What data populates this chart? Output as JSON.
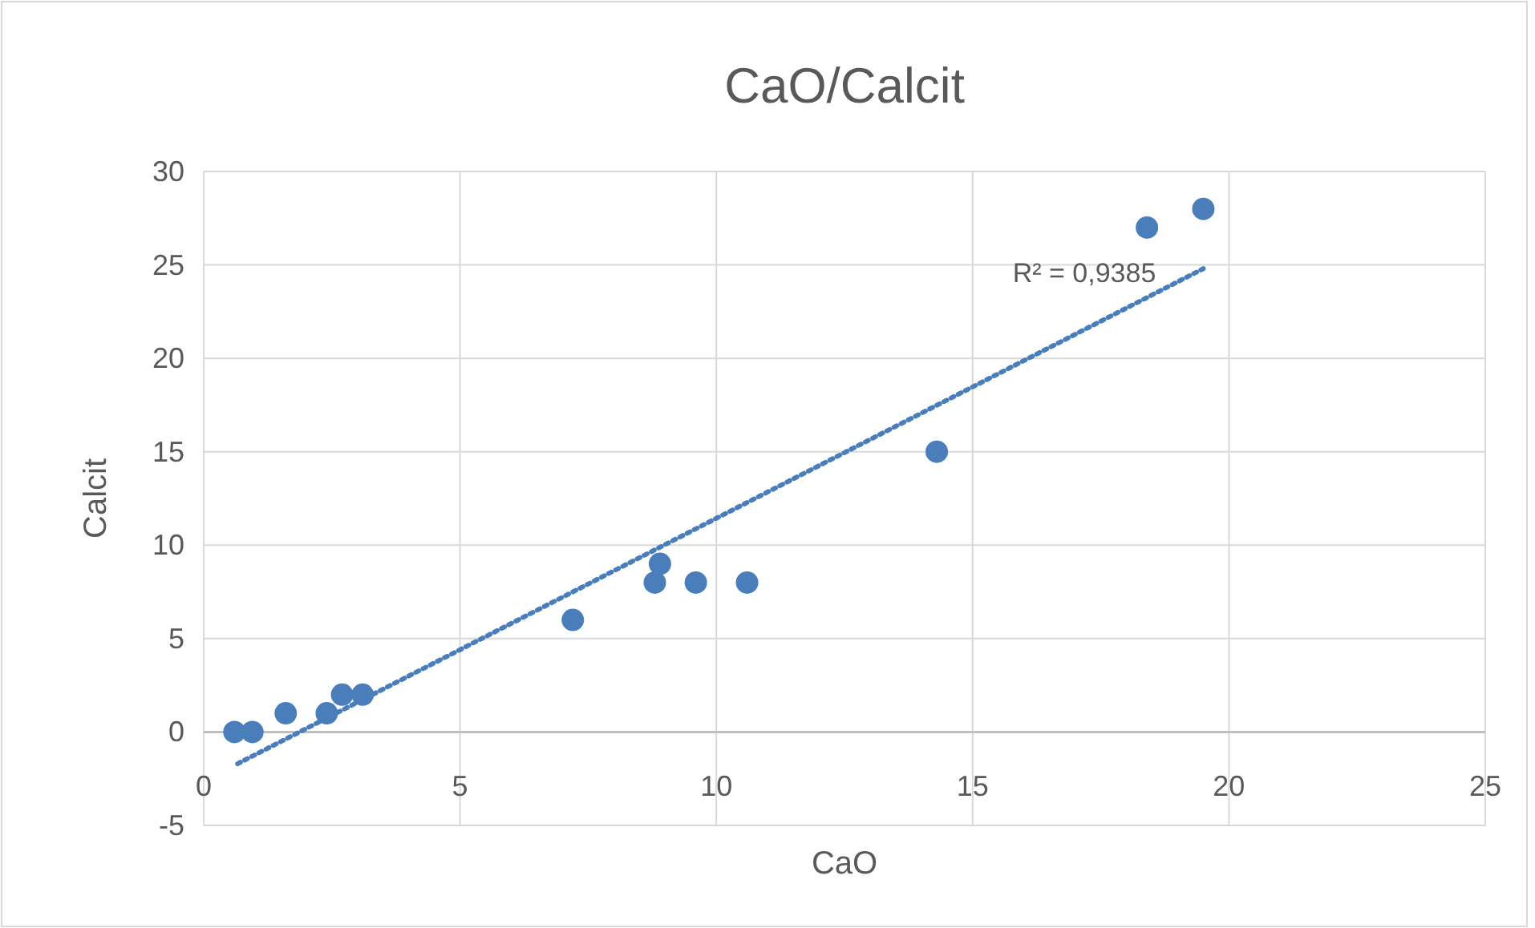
{
  "chart_data": {
    "type": "scatter",
    "title": "CaO/Calcit",
    "xlabel": "CaO",
    "ylabel": "Calcit",
    "xlim": [
      0,
      25
    ],
    "xticks": [
      0,
      5,
      10,
      15,
      20,
      25
    ],
    "ylim": [
      -5,
      30
    ],
    "yticks": [
      -5,
      0,
      5,
      10,
      15,
      20,
      25,
      30
    ],
    "grid": true,
    "series": [
      {
        "color": "#4a7ebb",
        "marker": "circle",
        "x": [
          0.6,
          0.95,
          1.6,
          2.4,
          2.7,
          3.1,
          7.2,
          8.8,
          8.9,
          9.6,
          10.6,
          14.3,
          18.4,
          19.5
        ],
        "values": [
          0,
          0,
          1,
          1,
          2,
          2,
          6,
          8,
          9,
          8,
          8,
          15,
          27,
          28
        ]
      },
      {
        "type": "line",
        "color": "#4a7ebb",
        "line_style": "dotted",
        "x": [
          0.66,
          19.5
        ],
        "values": [
          -1.7,
          24.8
        ]
      }
    ],
    "annotations": [
      "R² = 0,9385"
    ]
  }
}
